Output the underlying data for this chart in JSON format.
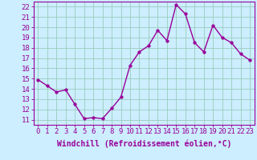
{
  "x": [
    0,
    1,
    2,
    3,
    4,
    5,
    6,
    7,
    8,
    9,
    10,
    11,
    12,
    13,
    14,
    15,
    16,
    17,
    18,
    19,
    20,
    21,
    22,
    23
  ],
  "y": [
    14.9,
    14.3,
    13.7,
    13.9,
    12.5,
    11.1,
    11.2,
    11.1,
    12.1,
    13.2,
    16.3,
    17.6,
    18.2,
    19.7,
    18.7,
    22.2,
    21.3,
    18.5,
    17.6,
    20.2,
    19.0,
    18.5,
    17.4,
    16.8
  ],
  "line_color": "#990099",
  "marker_color": "#990099",
  "bg_color": "#cceeff",
  "grid_color": "#99ccbb",
  "xlabel": "Windchill (Refroidissement éolien,°C)",
  "xlim": [
    -0.5,
    23.5
  ],
  "ylim": [
    10.5,
    22.5
  ],
  "yticks": [
    11,
    12,
    13,
    14,
    15,
    16,
    17,
    18,
    19,
    20,
    21,
    22
  ],
  "xticks": [
    0,
    1,
    2,
    3,
    4,
    5,
    6,
    7,
    8,
    9,
    10,
    11,
    12,
    13,
    14,
    15,
    16,
    17,
    18,
    19,
    20,
    21,
    22,
    23
  ],
  "xlabel_fontsize": 7.0,
  "tick_fontsize": 6.5,
  "line_width": 1.0,
  "marker_size": 2.5
}
